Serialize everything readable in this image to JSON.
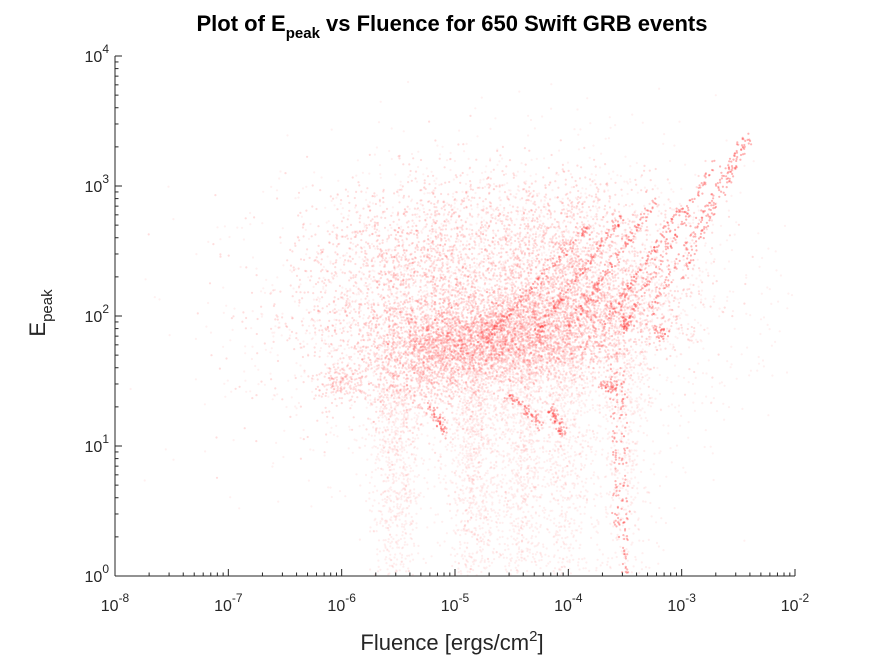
{
  "chart_data": {
    "type": "scatter",
    "title": {
      "prefix": "Plot of E",
      "sub": "peak",
      "suffix": " vs Fluence for 650 Swift GRB events"
    },
    "xlabel": {
      "text": "Fluence [ergs/cm",
      "sup": "2",
      "close": "]"
    },
    "ylabel": {
      "base": "E",
      "sub": "peak"
    },
    "x_scale": "log",
    "y_scale": "log",
    "xlim": [
      1e-08,
      0.01
    ],
    "ylim": [
      1,
      10000
    ],
    "xticks": [
      {
        "base": "10",
        "exp": "-8"
      },
      {
        "base": "10",
        "exp": "-7"
      },
      {
        "base": "10",
        "exp": "-6"
      },
      {
        "base": "10",
        "exp": "-5"
      },
      {
        "base": "10",
        "exp": "-4"
      },
      {
        "base": "10",
        "exp": "-3"
      },
      {
        "base": "10",
        "exp": "-2"
      }
    ],
    "yticks": [
      {
        "base": "10",
        "exp": "0"
      },
      {
        "base": "10",
        "exp": "1"
      },
      {
        "base": "10",
        "exp": "2"
      },
      {
        "base": "10",
        "exp": "3"
      },
      {
        "base": "10",
        "exp": "4"
      }
    ],
    "grid": false,
    "marker_color": "#ff2a2a",
    "density_clouds": [
      {
        "x": 3e-05,
        "y": 70,
        "sx": 0.5,
        "sy": 0.18,
        "n": 2600
      },
      {
        "x": 1e-05,
        "y": 60,
        "sx": 0.35,
        "sy": 0.12,
        "n": 900
      },
      {
        "x": 0.00015,
        "y": 120,
        "sx": 0.45,
        "sy": 0.22,
        "n": 1500
      },
      {
        "x": 6e-06,
        "y": 250,
        "sx": 0.45,
        "sy": 0.35,
        "n": 1200
      },
      {
        "x": 5e-06,
        "y": 35,
        "sx": 0.3,
        "sy": 0.15,
        "n": 500
      },
      {
        "x": 0.0001,
        "y": 400,
        "sx": 0.5,
        "sy": 0.25,
        "n": 900
      },
      {
        "x": 2e-06,
        "y": 100,
        "sx": 0.55,
        "sy": 0.45,
        "n": 700
      },
      {
        "x": 1e-06,
        "y": 30,
        "sx": 0.1,
        "sy": 0.06,
        "n": 120
      }
    ],
    "faint_cloud": {
      "x": 3e-05,
      "y": 100,
      "sx": 1.0,
      "sy": 0.6,
      "n": 3500
    },
    "tails": [
      {
        "x": 3e-06,
        "ytop": 30,
        "n": 700
      },
      {
        "x": 1.5e-05,
        "ytop": 40,
        "n": 900
      },
      {
        "x": 4e-05,
        "ytop": 50,
        "n": 800
      },
      {
        "x": 0.0001,
        "ytop": 60,
        "n": 600
      },
      {
        "x": 0.0003,
        "ytop": 50,
        "n": 400
      }
    ],
    "streaks": [
      {
        "x0": 0.0002,
        "y0": 80,
        "x1": 0.001,
        "y1": 700,
        "n": 120
      },
      {
        "x0": 0.0003,
        "y0": 80,
        "x1": 0.002,
        "y1": 1500,
        "n": 120
      },
      {
        "x0": 0.0005,
        "y0": 100,
        "x1": 0.0035,
        "y1": 2200,
        "n": 120
      },
      {
        "x0": 0.0001,
        "y0": 80,
        "x1": 0.0006,
        "y1": 800,
        "n": 120
      },
      {
        "x0": 5e-05,
        "y0": 70,
        "x1": 0.0003,
        "y1": 600,
        "n": 120
      },
      {
        "x0": 2e-05,
        "y0": 70,
        "x1": 0.00015,
        "y1": 500,
        "n": 120
      },
      {
        "x0": 0.001,
        "y0": 200,
        "x1": 0.004,
        "y1": 2500,
        "n": 90
      },
      {
        "x0": 3e-05,
        "y0": 25,
        "x1": 6e-05,
        "y1": 14,
        "n": 60
      },
      {
        "x0": 7e-05,
        "y0": 20,
        "x1": 9e-05,
        "y1": 12,
        "n": 60
      },
      {
        "x0": 6e-06,
        "y0": 20,
        "x1": 8e-06,
        "y1": 13,
        "n": 50
      },
      {
        "x0": 0.0002,
        "y0": 30,
        "x1": 0.00026,
        "y1": 27,
        "n": 40
      },
      {
        "x0": 0.0003,
        "y0": 100,
        "x1": 0.00033,
        "y1": 80,
        "n": 30
      },
      {
        "x0": 0.0006,
        "y0": 80,
        "x1": 0.0007,
        "y1": 70,
        "n": 30
      },
      {
        "x0": 0.0003,
        "y0": 40,
        "x1": 0.00032,
        "y1": 1,
        "n": 80
      },
      {
        "x0": 0.00025,
        "y0": 40,
        "x1": 0.00027,
        "y1": 2,
        "n": 60
      }
    ]
  }
}
